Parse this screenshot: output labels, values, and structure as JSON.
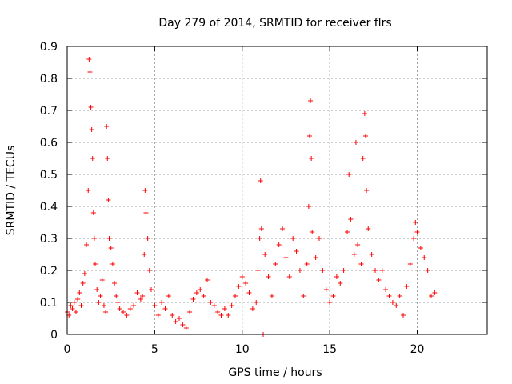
{
  "chart_data": {
    "type": "scatter",
    "title": "Day 279 of 2014, SRMTID for receiver flrs",
    "xlabel": "GPS time / hours",
    "ylabel": "SRMTID / TECUs",
    "xlim": [
      0,
      24
    ],
    "ylim": [
      0,
      0.9
    ],
    "xticks": [
      0,
      5,
      10,
      15,
      20
    ],
    "xtick_labels": [
      "0",
      "5",
      "10",
      "15",
      "20"
    ],
    "yticks": [
      0,
      0.1,
      0.2,
      0.3,
      0.4,
      0.5,
      0.6,
      0.7,
      0.8,
      0.9
    ],
    "ytick_labels": [
      "0",
      "0.1",
      "0.2",
      "0.3",
      "0.4",
      "0.5",
      "0.6",
      "0.7",
      "0.8",
      "0.9"
    ],
    "grid": true,
    "marker": "+",
    "color": "#ff0000",
    "series": [
      {
        "name": "SRMTID",
        "points": [
          [
            0.0,
            0.07
          ],
          [
            0.1,
            0.06
          ],
          [
            0.2,
            0.09
          ],
          [
            0.3,
            0.08
          ],
          [
            0.4,
            0.1
          ],
          [
            0.5,
            0.07
          ],
          [
            0.6,
            0.11
          ],
          [
            0.7,
            0.13
          ],
          [
            0.8,
            0.09
          ],
          [
            0.9,
            0.16
          ],
          [
            1.0,
            0.19
          ],
          [
            1.1,
            0.28
          ],
          [
            1.2,
            0.45
          ],
          [
            1.25,
            0.86
          ],
          [
            1.3,
            0.82
          ],
          [
            1.35,
            0.71
          ],
          [
            1.4,
            0.64
          ],
          [
            1.45,
            0.55
          ],
          [
            1.5,
            0.38
          ],
          [
            1.55,
            0.3
          ],
          [
            1.6,
            0.22
          ],
          [
            1.7,
            0.14
          ],
          [
            1.8,
            0.1
          ],
          [
            1.9,
            0.12
          ],
          [
            2.0,
            0.17
          ],
          [
            2.1,
            0.09
          ],
          [
            2.2,
            0.07
          ],
          [
            2.25,
            0.65
          ],
          [
            2.3,
            0.55
          ],
          [
            2.35,
            0.42
          ],
          [
            2.4,
            0.3
          ],
          [
            2.5,
            0.27
          ],
          [
            2.6,
            0.22
          ],
          [
            2.7,
            0.16
          ],
          [
            2.8,
            0.12
          ],
          [
            2.9,
            0.1
          ],
          [
            3.0,
            0.08
          ],
          [
            3.2,
            0.07
          ],
          [
            3.4,
            0.06
          ],
          [
            3.6,
            0.08
          ],
          [
            3.8,
            0.09
          ],
          [
            4.0,
            0.13
          ],
          [
            4.2,
            0.11
          ],
          [
            4.3,
            0.12
          ],
          [
            4.4,
            0.25
          ],
          [
            4.45,
            0.45
          ],
          [
            4.5,
            0.38
          ],
          [
            4.6,
            0.3
          ],
          [
            4.7,
            0.2
          ],
          [
            4.8,
            0.14
          ],
          [
            5.0,
            0.09
          ],
          [
            5.2,
            0.06
          ],
          [
            5.4,
            0.1
          ],
          [
            5.6,
            0.08
          ],
          [
            5.8,
            0.12
          ],
          [
            6.0,
            0.06
          ],
          [
            6.2,
            0.04
          ],
          [
            6.4,
            0.05
          ],
          [
            6.6,
            0.03
          ],
          [
            6.8,
            0.02
          ],
          [
            7.0,
            0.07
          ],
          [
            7.2,
            0.11
          ],
          [
            7.4,
            0.13
          ],
          [
            7.6,
            0.14
          ],
          [
            7.8,
            0.12
          ],
          [
            8.0,
            0.17
          ],
          [
            8.2,
            0.1
          ],
          [
            8.4,
            0.09
          ],
          [
            8.6,
            0.07
          ],
          [
            8.8,
            0.06
          ],
          [
            9.0,
            0.08
          ],
          [
            9.2,
            0.06
          ],
          [
            9.4,
            0.09
          ],
          [
            9.6,
            0.12
          ],
          [
            9.8,
            0.15
          ],
          [
            10.0,
            0.18
          ],
          [
            10.2,
            0.16
          ],
          [
            10.4,
            0.13
          ],
          [
            10.6,
            0.08
          ],
          [
            10.8,
            0.1
          ],
          [
            10.9,
            0.2
          ],
          [
            11.0,
            0.3
          ],
          [
            11.05,
            0.48
          ],
          [
            11.1,
            0.33
          ],
          [
            11.2,
            0.0
          ],
          [
            11.3,
            0.25
          ],
          [
            11.5,
            0.18
          ],
          [
            11.7,
            0.12
          ],
          [
            11.9,
            0.22
          ],
          [
            12.1,
            0.28
          ],
          [
            12.3,
            0.33
          ],
          [
            12.5,
            0.24
          ],
          [
            12.7,
            0.18
          ],
          [
            12.9,
            0.3
          ],
          [
            13.1,
            0.26
          ],
          [
            13.3,
            0.2
          ],
          [
            13.5,
            0.12
          ],
          [
            13.7,
            0.22
          ],
          [
            13.8,
            0.4
          ],
          [
            13.85,
            0.62
          ],
          [
            13.9,
            0.73
          ],
          [
            13.95,
            0.55
          ],
          [
            14.0,
            0.32
          ],
          [
            14.2,
            0.24
          ],
          [
            14.4,
            0.3
          ],
          [
            14.6,
            0.2
          ],
          [
            14.8,
            0.14
          ],
          [
            15.0,
            0.1
          ],
          [
            15.2,
            0.12
          ],
          [
            15.4,
            0.18
          ],
          [
            15.6,
            0.16
          ],
          [
            15.8,
            0.2
          ],
          [
            16.0,
            0.32
          ],
          [
            16.1,
            0.5
          ],
          [
            16.2,
            0.36
          ],
          [
            16.4,
            0.25
          ],
          [
            16.5,
            0.6
          ],
          [
            16.6,
            0.28
          ],
          [
            16.8,
            0.22
          ],
          [
            16.9,
            0.55
          ],
          [
            17.0,
            0.69
          ],
          [
            17.05,
            0.62
          ],
          [
            17.1,
            0.45
          ],
          [
            17.2,
            0.33
          ],
          [
            17.4,
            0.25
          ],
          [
            17.6,
            0.2
          ],
          [
            17.8,
            0.17
          ],
          [
            18.0,
            0.2
          ],
          [
            18.2,
            0.14
          ],
          [
            18.4,
            0.12
          ],
          [
            18.6,
            0.1
          ],
          [
            18.8,
            0.09
          ],
          [
            19.0,
            0.12
          ],
          [
            19.2,
            0.06
          ],
          [
            19.4,
            0.15
          ],
          [
            19.6,
            0.22
          ],
          [
            19.8,
            0.3
          ],
          [
            19.9,
            0.35
          ],
          [
            20.0,
            0.32
          ],
          [
            20.2,
            0.27
          ],
          [
            20.4,
            0.24
          ],
          [
            20.6,
            0.2
          ],
          [
            20.8,
            0.12
          ],
          [
            21.0,
            0.13
          ]
        ]
      }
    ]
  }
}
